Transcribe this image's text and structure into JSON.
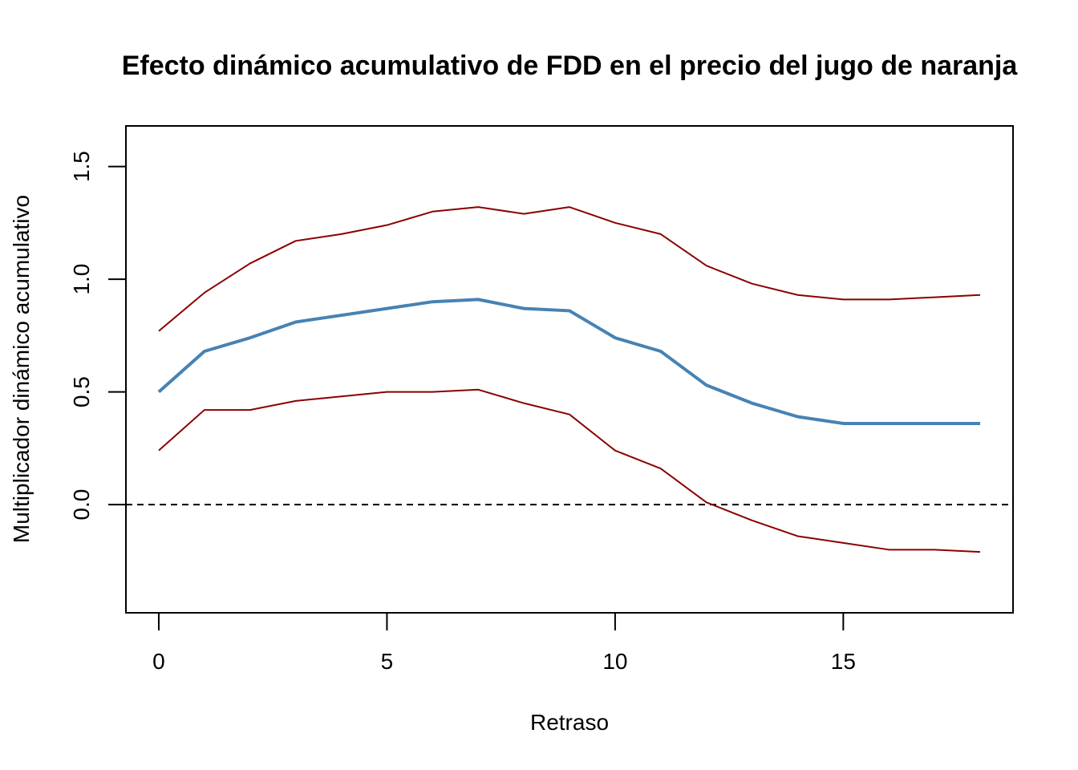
{
  "chart_data": {
    "type": "line",
    "title": "Efecto dinámico acumulativo de FDD en el precio del jugo de naranja",
    "xlabel": "Retraso",
    "ylabel": "Multiplicador dinámico acumulativo",
    "xlim": [
      -0.72,
      18.72
    ],
    "ylim": [
      -0.48,
      1.68
    ],
    "x_ticks": [
      0,
      5,
      10,
      15
    ],
    "x_tick_labels": [
      "0",
      "5",
      "10",
      "15"
    ],
    "y_ticks": [
      0.0,
      0.5,
      1.0,
      1.5
    ],
    "y_tick_labels": [
      "0.0",
      "0.5",
      "1.0",
      "1.5"
    ],
    "grid": false,
    "reference_line": {
      "y": 0,
      "style": "dashed",
      "color": "#000000"
    },
    "x": [
      0,
      1,
      2,
      3,
      4,
      5,
      6,
      7,
      8,
      9,
      10,
      11,
      12,
      13,
      14,
      15,
      16,
      17,
      18
    ],
    "series": [
      {
        "color": "#4682B4",
        "line_width": 4,
        "values": [
          0.5,
          0.68,
          0.74,
          0.81,
          0.84,
          0.87,
          0.9,
          0.91,
          0.87,
          0.86,
          0.74,
          0.68,
          0.53,
          0.45,
          0.39,
          0.36,
          0.36,
          0.36,
          0.36
        ]
      },
      {
        "color": "#8B0000",
        "line_width": 2,
        "values": [
          0.24,
          0.42,
          0.42,
          0.46,
          0.48,
          0.5,
          0.5,
          0.51,
          0.45,
          0.4,
          0.24,
          0.16,
          0.01,
          -0.07,
          -0.14,
          -0.17,
          -0.2,
          -0.2,
          -0.21
        ]
      },
      {
        "color": "#8B0000",
        "line_width": 2,
        "values": [
          0.77,
          0.94,
          1.07,
          1.17,
          1.2,
          1.24,
          1.3,
          1.32,
          1.29,
          1.32,
          1.25,
          1.2,
          1.06,
          0.98,
          0.93,
          0.91,
          0.91,
          0.92,
          0.93
        ]
      }
    ]
  }
}
